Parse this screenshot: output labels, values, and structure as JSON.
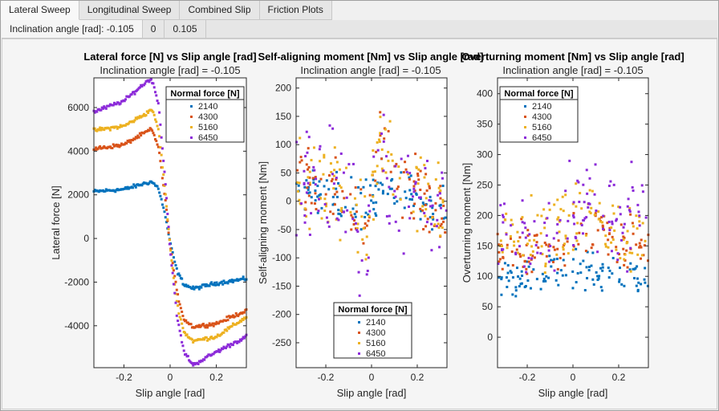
{
  "tabs": [
    "Lateral Sweep",
    "Longitudinal Sweep",
    "Combined Slip",
    "Friction Plots"
  ],
  "subtabs": [
    "Inclination angle [rad]: -0.105",
    "0",
    "0.105"
  ],
  "colors": {
    "2140": "#0072BD",
    "4300": "#D95319",
    "5160": "#EDB120",
    "6450": "#8C2BD9"
  },
  "chart_data": [
    {
      "type": "scatter",
      "title": "Lateral force [N] vs Slip angle [rad]",
      "subtitle": "Inclination angle [rad] = -0.105",
      "xlabel": "Slip angle [rad]",
      "ylabel": "Lateral force [N]",
      "xlim": [
        -0.33,
        0.33
      ],
      "ylim": [
        -5920,
        7360
      ],
      "xticks": [
        -0.2,
        0,
        0.2
      ],
      "xticklabels": [
        "-0.2",
        "0",
        "0.2"
      ],
      "yticks": [
        -4000,
        -2000,
        0,
        2000,
        4000,
        6000
      ],
      "yticklabels": [
        "-4000",
        "-2000",
        "0",
        "2000",
        "4000",
        "6000"
      ],
      "legend_title": "Normal force [N]",
      "legend": "top-right",
      "noise": 60,
      "series": [
        {
          "name": "2140",
          "x": [
            -0.33,
            -0.2,
            -0.1,
            -0.08,
            -0.05,
            -0.02,
            0,
            0.03,
            0.06,
            0.1,
            0.2,
            0.33
          ],
          "y": [
            2150,
            2250,
            2550,
            2600,
            2300,
            1000,
            -200,
            -1500,
            -2100,
            -2300,
            -2050,
            -1850
          ]
        },
        {
          "name": "4300",
          "x": [
            -0.33,
            -0.2,
            -0.1,
            -0.08,
            -0.05,
            -0.02,
            0,
            0.03,
            0.06,
            0.1,
            0.2,
            0.33
          ],
          "y": [
            4100,
            4300,
            4900,
            5000,
            4200,
            1700,
            -300,
            -2500,
            -3700,
            -4050,
            -3900,
            -3300
          ]
        },
        {
          "name": "5160",
          "x": [
            -0.33,
            -0.2,
            -0.1,
            -0.08,
            -0.05,
            -0.02,
            0,
            0.03,
            0.06,
            0.1,
            0.2,
            0.33
          ],
          "y": [
            4950,
            5150,
            5750,
            5950,
            5000,
            2000,
            -400,
            -3000,
            -4300,
            -4700,
            -4500,
            -3600
          ]
        },
        {
          "name": "6450",
          "x": [
            -0.33,
            -0.2,
            -0.1,
            -0.08,
            -0.05,
            -0.02,
            0,
            0.03,
            0.06,
            0.1,
            0.15,
            0.2,
            0.33
          ],
          "y": [
            5800,
            6300,
            7200,
            7300,
            6200,
            2500,
            -500,
            -3600,
            -5200,
            -5800,
            -5500,
            -5200,
            -4500
          ]
        }
      ]
    },
    {
      "type": "scatter",
      "title": "Self-aligning moment [Nm] vs Slip angle [rad]",
      "subtitle": "Inclination angle [rad] = -0.105",
      "xlabel": "Slip angle [rad]",
      "ylabel": "Self-aligning moment [Nm]",
      "xlim": [
        -0.33,
        0.33
      ],
      "ylim": [
        -294,
        218
      ],
      "xticks": [
        -0.2,
        0,
        0.2
      ],
      "xticklabels": [
        "-0.2",
        "0",
        "0.2"
      ],
      "yticks": [
        -250,
        -200,
        -150,
        -100,
        -50,
        0,
        50,
        100,
        150,
        200
      ],
      "yticklabels": [
        "-250",
        "-200",
        "-150",
        "-100",
        "-50",
        "0",
        "50",
        "100",
        "150",
        "200"
      ],
      "legend_title": "Normal force [N]",
      "legend": "bottom",
      "noise": 60,
      "series": [
        {
          "name": "2140",
          "x": [
            -0.33,
            -0.1,
            -0.03,
            0,
            0.03,
            0.1,
            0.33
          ],
          "y": [
            20,
            0,
            -20,
            0,
            30,
            10,
            -10
          ]
        },
        {
          "name": "4300",
          "x": [
            -0.33,
            -0.1,
            -0.03,
            0,
            0.04,
            0.1,
            0.33
          ],
          "y": [
            30,
            0,
            -40,
            0,
            100,
            40,
            -30
          ]
        },
        {
          "name": "5160",
          "x": [
            -0.33,
            -0.1,
            -0.03,
            0,
            0.04,
            0.1,
            0.33
          ],
          "y": [
            40,
            0,
            -60,
            0,
            130,
            50,
            -30
          ]
        },
        {
          "name": "6450",
          "x": [
            -0.33,
            -0.1,
            -0.03,
            0,
            0.02,
            0.06,
            0.12,
            0.33
          ],
          "y": [
            30,
            10,
            -145,
            0,
            200,
            60,
            20,
            -30
          ]
        }
      ]
    },
    {
      "type": "scatter",
      "title": "Overturning moment [Nm] vs Slip angle [rad]",
      "subtitle": "Inclination angle [rad] = -0.105",
      "xlabel": "Slip angle [rad]",
      "ylabel": "Overturning moment [Nm]",
      "xlim": [
        -0.33,
        0.33
      ],
      "ylim": [
        -50,
        426
      ],
      "xticks": [
        -0.2,
        0,
        0.2
      ],
      "xticklabels": [
        "-0.2",
        "0",
        "0.2"
      ],
      "yticks": [
        0,
        50,
        100,
        150,
        200,
        250,
        300,
        350,
        400
      ],
      "yticklabels": [
        "0",
        "50",
        "100",
        "150",
        "200",
        "250",
        "300",
        "350",
        "400"
      ],
      "legend_title": "Normal force [N]",
      "legend": "top-left",
      "noise": 45,
      "series": [
        {
          "name": "2140",
          "x": [
            -0.33,
            0,
            0.33
          ],
          "y": [
            100,
            105,
            100
          ]
        },
        {
          "name": "4300",
          "x": [
            -0.33,
            -0.05,
            0.05,
            0.33
          ],
          "y": [
            140,
            150,
            180,
            150
          ]
        },
        {
          "name": "5160",
          "x": [
            -0.33,
            -0.05,
            0.05,
            0.33
          ],
          "y": [
            160,
            170,
            190,
            170
          ]
        },
        {
          "name": "6450",
          "x": [
            -0.33,
            -0.05,
            0.03,
            0.12,
            0.33
          ],
          "y": [
            170,
            160,
            240,
            200,
            200
          ]
        }
      ]
    }
  ]
}
